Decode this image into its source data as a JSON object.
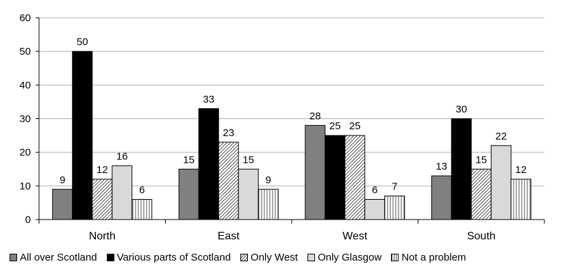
{
  "chart_data": {
    "type": "bar",
    "categories": [
      "North",
      "East",
      "West",
      "South"
    ],
    "series": [
      {
        "name": "All over Scotland",
        "values": [
          9,
          15,
          28,
          13
        ],
        "color": "#808080",
        "pattern": "solid"
      },
      {
        "name": "Various parts of Scotland",
        "values": [
          50,
          33,
          25,
          30
        ],
        "color": "#000000",
        "pattern": "solid"
      },
      {
        "name": "Only West",
        "values": [
          12,
          23,
          25,
          15
        ],
        "color": "#ffffff",
        "pattern": "diagonal"
      },
      {
        "name": "Only Glasgow",
        "values": [
          16,
          15,
          6,
          22
        ],
        "color": "#d9d9d9",
        "pattern": "solid"
      },
      {
        "name": "Not a problem",
        "values": [
          6,
          9,
          7,
          12
        ],
        "color": "#ffffff",
        "pattern": "vertical"
      }
    ],
    "yticks": [
      0,
      10,
      20,
      30,
      40,
      50,
      60
    ],
    "ylim": [
      0,
      60
    ],
    "grid": true,
    "legend_position": "bottom",
    "title": "",
    "xlabel": "",
    "ylabel": ""
  }
}
